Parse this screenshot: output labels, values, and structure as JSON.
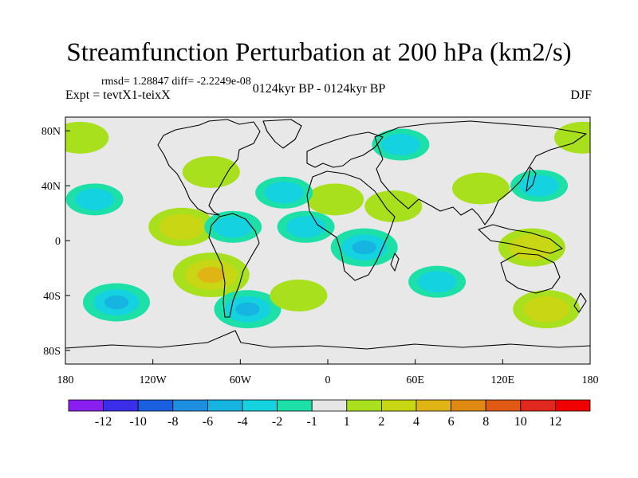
{
  "chart_data": {
    "type": "heatmap",
    "title": "Streamfunction Perturbation at 200 hPa (km2/s)",
    "stats": "rmsd= 1.28847 diff= -2.2249e-08",
    "left_label": "Expt = tevtX1-teixX",
    "center_label": "0124kyr BP - 0124kyr BP",
    "right_label": "DJF",
    "x_ticks": [
      "180",
      "120W",
      "60W",
      "0",
      "60E",
      "120E",
      "180"
    ],
    "y_ticks": [
      "80N",
      "40N",
      "0",
      "40S",
      "80S"
    ],
    "xlim": [
      -180,
      180
    ],
    "ylim": [
      -90,
      90
    ],
    "colorbar": {
      "labels": [
        "-12",
        "-10",
        "-8",
        "-6",
        "-4",
        "-2",
        "-1",
        "1",
        "2",
        "4",
        "6",
        "8",
        "10",
        "12"
      ],
      "colors": [
        "#8a1ef0",
        "#3a2ee8",
        "#1a5fe0",
        "#1e8fe0",
        "#16b4e0",
        "#14d2e0",
        "#1de0a8",
        "#e6e6e6",
        "#a8e01e",
        "#c8d614",
        "#e0b414",
        "#e08a14",
        "#e05a14",
        "#e0281e",
        "#f00000"
      ]
    },
    "anomaly_centers": [
      {
        "lon": -160,
        "lat": 30,
        "level": -2
      },
      {
        "lon": -100,
        "lat": 10,
        "level": 4
      },
      {
        "lon": -80,
        "lat": -25,
        "level": 6
      },
      {
        "lon": -145,
        "lat": -45,
        "level": -4
      },
      {
        "lon": -55,
        "lat": -50,
        "level": -4
      },
      {
        "lon": -20,
        "lat": -40,
        "level": 2
      },
      {
        "lon": 25,
        "lat": -5,
        "level": -4
      },
      {
        "lon": -65,
        "lat": 10,
        "level": -2
      },
      {
        "lon": -15,
        "lat": 10,
        "level": -2
      },
      {
        "lon": 5,
        "lat": 30,
        "level": 2
      },
      {
        "lon": 45,
        "lat": 25,
        "level": 2
      },
      {
        "lon": 140,
        "lat": -5,
        "level": 4
      },
      {
        "lon": 150,
        "lat": -50,
        "level": 4
      },
      {
        "lon": 75,
        "lat": -30,
        "level": -2
      },
      {
        "lon": 50,
        "lat": 70,
        "level": -2
      },
      {
        "lon": -170,
        "lat": 75,
        "level": 2
      },
      {
        "lon": 175,
        "lat": 75,
        "level": 2
      },
      {
        "lon": 145,
        "lat": 40,
        "level": -2
      },
      {
        "lon": 105,
        "lat": 38,
        "level": 2
      },
      {
        "lon": -30,
        "lat": 35,
        "level": -2
      },
      {
        "lon": -80,
        "lat": 50,
        "level": 2
      }
    ]
  }
}
